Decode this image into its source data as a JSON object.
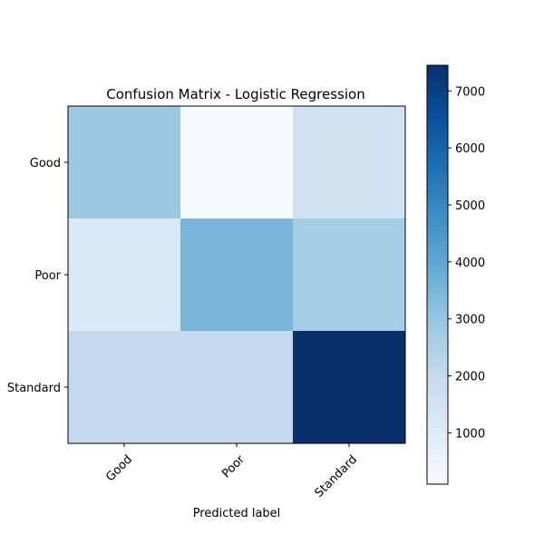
{
  "chart_data": {
    "type": "heatmap",
    "title": "Confusion Matrix - Logistic Regression",
    "xlabel": "Predicted label",
    "ylabel": "",
    "x_categories": [
      "Good",
      "Poor",
      "Standard"
    ],
    "y_categories": [
      "Good",
      "Poor",
      "Standard"
    ],
    "values": [
      [
        2900,
        100,
        1500
      ],
      [
        1200,
        3500,
        2700
      ],
      [
        2000,
        2000,
        7450
      ]
    ],
    "colormap": "Blues",
    "colorbar": {
      "min": 100,
      "max": 7450,
      "ticks": [
        1000,
        2000,
        3000,
        4000,
        5000,
        6000,
        7000
      ],
      "tick_labels": [
        "1000",
        "2000",
        "3000",
        "4000",
        "5000",
        "6000",
        "7000"
      ]
    },
    "grid": false,
    "legend": "colorbar-right"
  }
}
